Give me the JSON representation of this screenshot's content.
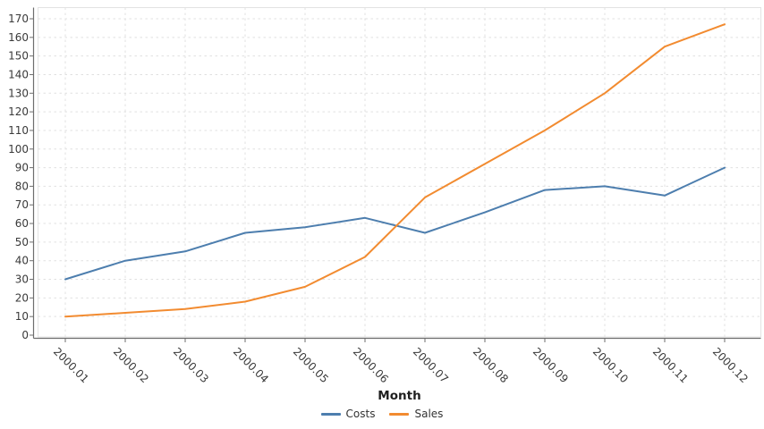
{
  "chart_data": {
    "type": "line",
    "title": "",
    "xlabel": "Month",
    "ylabel": "",
    "categories": [
      "2000.01",
      "2000.02",
      "2000.03",
      "2000.04",
      "2000.05",
      "2000.06",
      "2000.07",
      "2000.08",
      "2000.09",
      "2000.10",
      "2000.11",
      "2000.12"
    ],
    "series": [
      {
        "name": "Costs",
        "color": "#4d7eae",
        "values": [
          30,
          40,
          45,
          55,
          58,
          63,
          55,
          66,
          78,
          80,
          75,
          90
        ]
      },
      {
        "name": "Sales",
        "color": "#f28b30",
        "values": [
          10,
          12,
          14,
          18,
          26,
          42,
          74,
          92,
          110,
          130,
          155,
          167
        ]
      }
    ],
    "ylim": [
      0,
      170
    ],
    "ytick_step": 10,
    "grid": true,
    "gridline_style": "dotted",
    "legend_position": "bottom-center"
  },
  "style_colors": {
    "grid": "#e0e0e0",
    "plot_border": "#e3e3e3",
    "axis_line": "#6e6e6e",
    "tick_label": "#3a3a3a"
  }
}
